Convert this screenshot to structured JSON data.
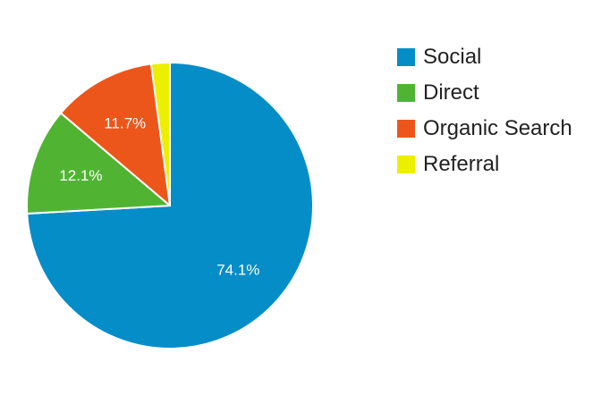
{
  "chart_data": {
    "type": "pie",
    "title": "",
    "legend_position": "right",
    "start_angle_deg": 0,
    "direction": "clockwise",
    "slices": [
      {
        "name": "Social",
        "value": 74.1,
        "label": "74.1%",
        "color": "#058DC7"
      },
      {
        "name": "Direct",
        "value": 12.1,
        "label": "12.1%",
        "color": "#50B432"
      },
      {
        "name": "Organic Search",
        "value": 11.7,
        "label": "11.7%",
        "color": "#ED561B"
      },
      {
        "name": "Referral",
        "value": 2.1,
        "label": "",
        "color": "#EDEF00"
      }
    ]
  }
}
